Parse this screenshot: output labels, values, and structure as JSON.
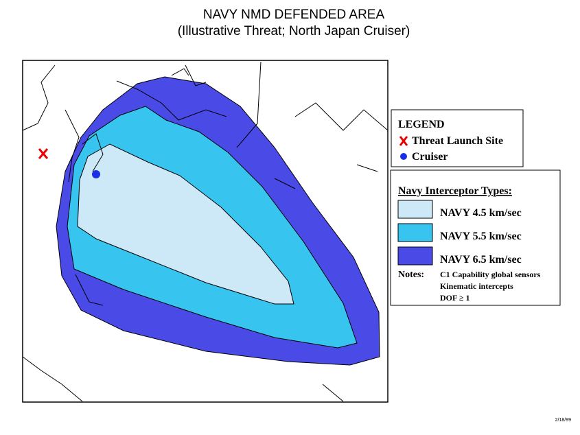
{
  "header": {
    "title": "NAVY NMD DEFENDED AREA",
    "subtitle": "(Illustrative Threat; North Japan Cruiser)"
  },
  "legend": {
    "title": "LEGEND",
    "items": [
      "Threat Launch Site",
      "Cruiser"
    ]
  },
  "interceptors": {
    "title": "Navy Interceptor Types:",
    "types": [
      {
        "name": "NAVY 4.5 km/sec",
        "color": "#cde9f8"
      },
      {
        "name": "NAVY 5.5 km/sec",
        "color": "#37c5f0"
      },
      {
        "name": "NAVY 6.5 km/sec",
        "color": "#4a4ae6"
      }
    ],
    "notes_label": "Notes:",
    "notes": [
      "C1 Capability global sensors",
      "Kinematic intercepts",
      "DOF ≥  1"
    ]
  },
  "footer": {
    "date": "2/18/99"
  }
}
